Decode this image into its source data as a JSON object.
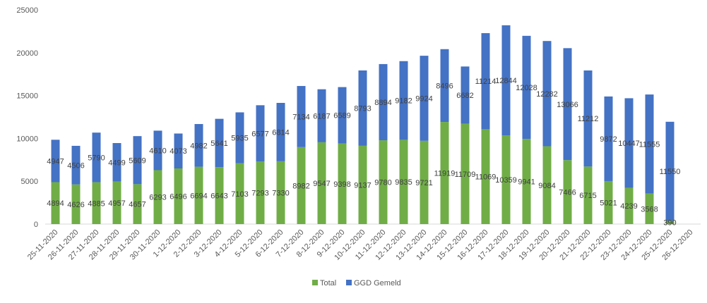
{
  "chart_data": {
    "type": "bar",
    "stacked": true,
    "categories": [
      "25-11-2020",
      "26-11-2020",
      "27-11-2020",
      "28-11-2020",
      "29-11-2020",
      "30-11-2020",
      "1-12-2020",
      "2-12-2020",
      "3-12-2020",
      "4-12-2020",
      "5-12-2020",
      "6-12-2020",
      "7-12-2020",
      "8-12-2020",
      "9-12-2020",
      "10-12-2020",
      "11-12-2020",
      "12-12-2020",
      "13-12-2020",
      "14-12-2020",
      "15-12-2020",
      "16-12-2020",
      "17-12-2020",
      "18-12-2020",
      "19-12-2020",
      "20-12-2020",
      "21-12-2020",
      "22-12-2020",
      "23-12-2020",
      "24-12-2020",
      "25-12-2020",
      "26-12-2020"
    ],
    "series": [
      {
        "name": "Total",
        "color": "#70AD47",
        "values": [
          4894,
          4626,
          4885,
          4957,
          4657,
          6293,
          6496,
          6694,
          6643,
          7103,
          7293,
          7330,
          8982,
          9547,
          9398,
          9137,
          9780,
          9835,
          9721,
          11919,
          11709,
          11069,
          10359,
          9941,
          9084,
          7466,
          6715,
          5021,
          4239,
          3568,
          390,
          null
        ]
      },
      {
        "name": "GGD Gemeld",
        "color": "#4472C4",
        "values": [
          4947,
          4506,
          5790,
          4499,
          5609,
          4610,
          4073,
          4982,
          5641,
          5935,
          6577,
          6814,
          7134,
          6187,
          6589,
          8793,
          8894,
          9182,
          9924,
          8496,
          6682,
          11214,
          12844,
          12028,
          12282,
          13066,
          11212,
          9872,
          10447,
          11555,
          11550,
          null
        ]
      }
    ],
    "ylim": [
      0,
      25000
    ],
    "yticks": [
      "0",
      "5000",
      "10000",
      "15000",
      "20000",
      "25000"
    ],
    "grid": false,
    "legend": "bottom"
  }
}
